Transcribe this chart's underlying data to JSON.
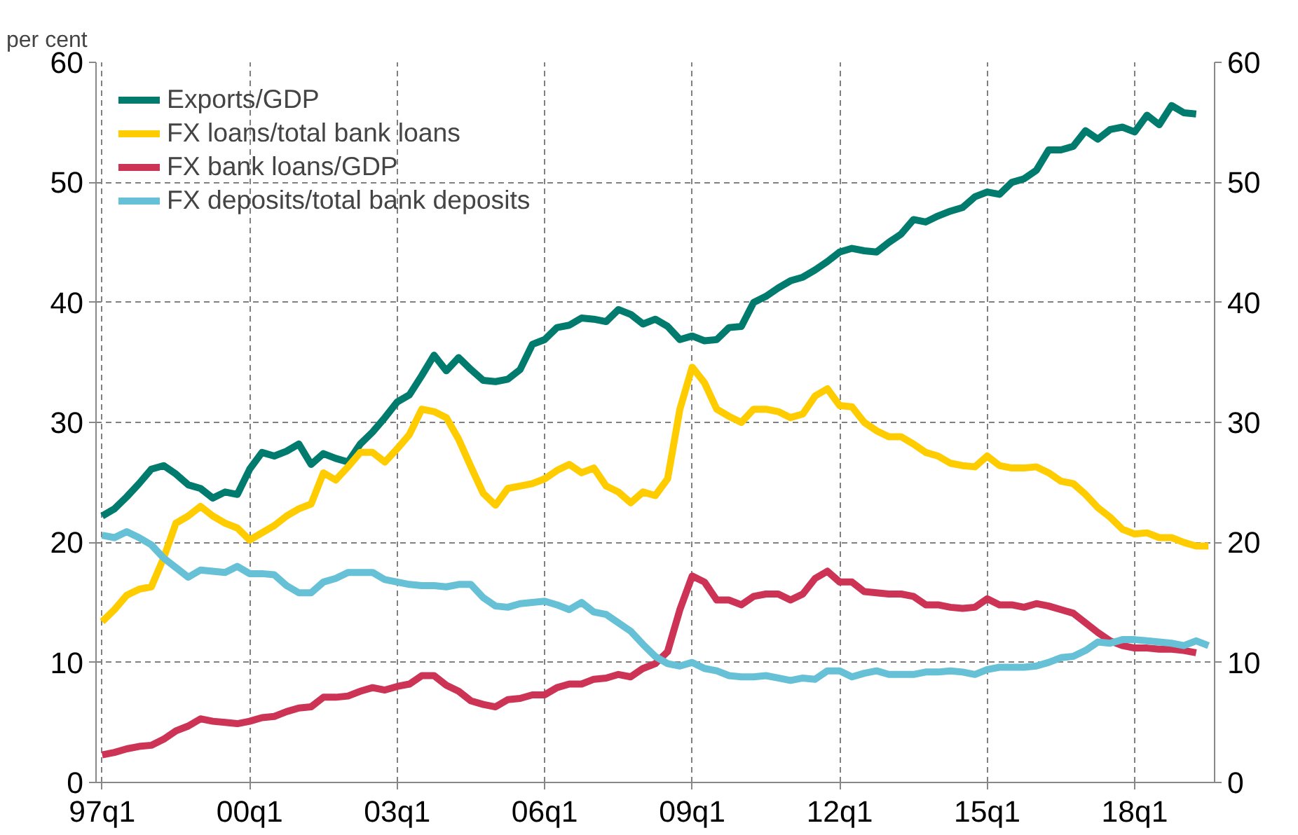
{
  "chart_data": {
    "type": "line",
    "ylabel": "per cent",
    "categories": [
      "97q1",
      null,
      null,
      null,
      null,
      null,
      null,
      null,
      null,
      null,
      null,
      null,
      "00q1",
      null,
      null,
      null,
      null,
      null,
      null,
      null,
      null,
      null,
      null,
      null,
      "03q1",
      null,
      null,
      null,
      null,
      null,
      null,
      null,
      null,
      null,
      null,
      null,
      "06q1",
      null,
      null,
      null,
      null,
      null,
      null,
      null,
      null,
      null,
      null,
      null,
      "09q1",
      null,
      null,
      null,
      null,
      null,
      null,
      null,
      null,
      null,
      null,
      null,
      "12q1",
      null,
      null,
      null,
      null,
      null,
      null,
      null,
      null,
      null,
      null,
      null,
      "15q1",
      null,
      null,
      null,
      null,
      null,
      null,
      null,
      null,
      null,
      null,
      null,
      "18q1",
      null,
      null,
      null,
      null,
      null,
      null
    ],
    "ylim": [
      0,
      60
    ],
    "yticks": [
      0,
      10,
      20,
      30,
      40,
      50,
      60
    ],
    "y2lim": [
      0,
      60
    ],
    "y2ticks": [
      0,
      10,
      20,
      30,
      40,
      50,
      60
    ],
    "grid": true,
    "legend": "top left",
    "marker": "none",
    "line_style": "solid",
    "series": [
      {
        "name": "Exports/GDP",
        "color": "#007b6e",
        "values": [
          22.2,
          22.8,
          23.8,
          24.9,
          26.1,
          26.4,
          25.7,
          24.8,
          24.5,
          23.7,
          24.2,
          24.0,
          26.1,
          27.5,
          27.2,
          27.6,
          28.2,
          26.5,
          27.4,
          27.0,
          26.7,
          28.2,
          29.2,
          30.4,
          31.7,
          32.3,
          33.9,
          35.6,
          34.3,
          35.4,
          34.4,
          33.5,
          33.4,
          33.6,
          34.4,
          36.5,
          36.9,
          37.9,
          38.1,
          38.7,
          38.6,
          38.4,
          39.4,
          39.0,
          38.2,
          38.6,
          38.0,
          36.9,
          37.2,
          36.8,
          36.9,
          37.9,
          38.0,
          40.0,
          40.5,
          41.2,
          41.8,
          42.1,
          42.7,
          43.4,
          44.2,
          44.5,
          44.3,
          44.2,
          45.0,
          45.7,
          46.9,
          46.7,
          47.2,
          47.6,
          47.9,
          48.8,
          49.2,
          49.0,
          50.0,
          50.3,
          51.0,
          52.7,
          52.7,
          53.0,
          54.3,
          53.6,
          54.4,
          54.6,
          54.2,
          55.6,
          54.8,
          56.4,
          55.8,
          55.7,
          null
        ]
      },
      {
        "name": "FX loans/total bank loans",
        "color": "#ffcc00",
        "values": [
          13.4,
          14.4,
          15.6,
          16.1,
          16.3,
          18.7,
          21.6,
          22.2,
          23.0,
          22.2,
          21.6,
          21.2,
          20.2,
          20.8,
          21.4,
          22.2,
          22.8,
          23.2,
          25.8,
          25.2,
          26.3,
          27.5,
          27.5,
          26.7,
          27.8,
          29.0,
          31.1,
          30.9,
          30.4,
          28.6,
          26.3,
          24.1,
          23.1,
          24.5,
          24.7,
          24.9,
          25.3,
          26.0,
          26.5,
          25.8,
          26.2,
          24.7,
          24.2,
          23.3,
          24.2,
          23.9,
          25.3,
          31.1,
          34.6,
          33.3,
          31.1,
          30.5,
          30.0,
          31.1,
          31.1,
          30.9,
          30.4,
          30.7,
          32.2,
          32.8,
          31.4,
          31.3,
          30.0,
          29.3,
          28.8,
          28.8,
          28.2,
          27.5,
          27.2,
          26.6,
          26.4,
          26.3,
          27.2,
          26.4,
          26.2,
          26.2,
          26.3,
          25.8,
          25.1,
          24.9,
          24.0,
          22.9,
          22.1,
          21.1,
          20.7,
          20.8,
          20.4,
          20.4,
          20.0,
          19.7,
          19.7
        ]
      },
      {
        "name": "FX bank loans/GDP",
        "color": "#cc3355",
        "values": [
          2.3,
          2.5,
          2.8,
          3.0,
          3.1,
          3.6,
          4.3,
          4.7,
          5.3,
          5.1,
          5.0,
          4.9,
          5.1,
          5.4,
          5.5,
          5.9,
          6.2,
          6.3,
          7.1,
          7.1,
          7.2,
          7.6,
          7.9,
          7.7,
          8.0,
          8.2,
          8.9,
          8.9,
          8.1,
          7.6,
          6.8,
          6.5,
          6.3,
          6.9,
          7.0,
          7.3,
          7.3,
          7.9,
          8.2,
          8.2,
          8.6,
          8.7,
          9.0,
          8.8,
          9.5,
          9.9,
          10.9,
          14.4,
          17.2,
          16.7,
          15.2,
          15.2,
          14.8,
          15.5,
          15.7,
          15.7,
          15.2,
          15.7,
          17.0,
          17.6,
          16.7,
          16.7,
          15.9,
          15.8,
          15.7,
          15.7,
          15.5,
          14.8,
          14.8,
          14.6,
          14.5,
          14.6,
          15.3,
          14.8,
          14.8,
          14.6,
          14.9,
          14.7,
          14.4,
          14.1,
          13.3,
          12.5,
          11.8,
          11.4,
          11.2,
          11.2,
          11.1,
          11.1,
          11.0,
          10.8,
          null
        ]
      },
      {
        "name": "FX deposits/total bank deposits",
        "color": "#66c0d6",
        "values": [
          20.6,
          20.4,
          20.9,
          20.4,
          19.8,
          18.7,
          17.9,
          17.1,
          17.7,
          17.6,
          17.5,
          18.0,
          17.4,
          17.4,
          17.3,
          16.4,
          15.8,
          15.8,
          16.7,
          17.0,
          17.5,
          17.5,
          17.5,
          16.9,
          16.7,
          16.5,
          16.4,
          16.4,
          16.3,
          16.5,
          16.5,
          15.4,
          14.7,
          14.6,
          14.9,
          15.0,
          15.1,
          14.8,
          14.4,
          15.0,
          14.2,
          14.0,
          13.3,
          12.6,
          11.5,
          10.5,
          9.9,
          9.7,
          10.0,
          9.5,
          9.3,
          8.9,
          8.8,
          8.8,
          8.9,
          8.7,
          8.5,
          8.7,
          8.6,
          9.3,
          9.3,
          8.8,
          9.1,
          9.3,
          9.0,
          9.0,
          9.0,
          9.2,
          9.2,
          9.3,
          9.2,
          9.0,
          9.4,
          9.6,
          9.6,
          9.6,
          9.7,
          10.0,
          10.4,
          10.5,
          11.0,
          11.7,
          11.6,
          11.9,
          11.9,
          11.8,
          11.7,
          11.6,
          11.4,
          11.8,
          11.4
        ]
      }
    ]
  }
}
